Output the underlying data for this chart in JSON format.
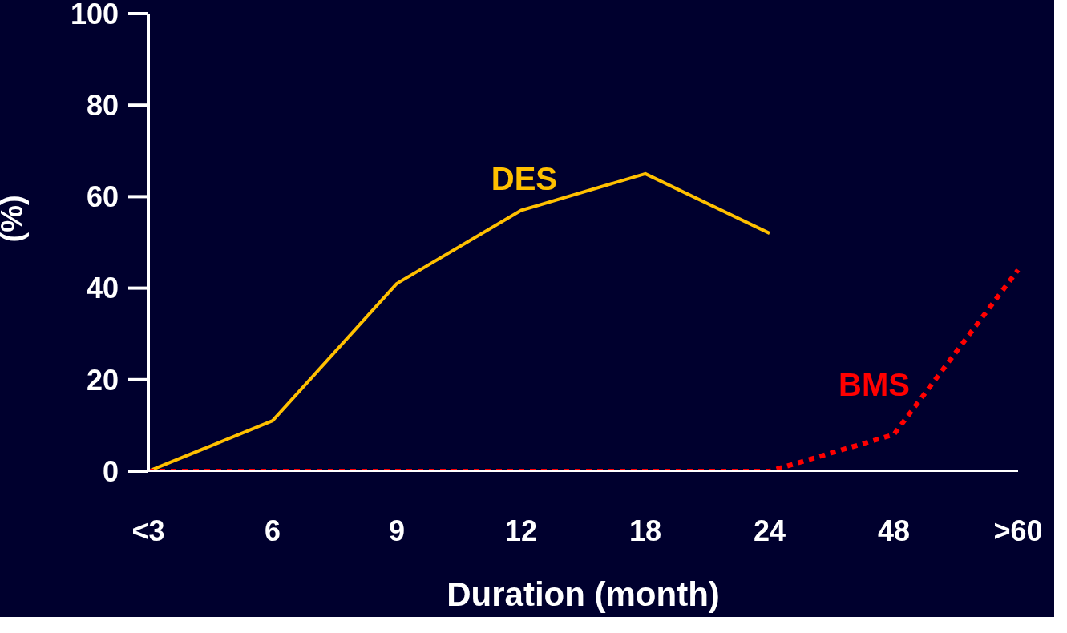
{
  "chart_data": {
    "type": "line",
    "categories": [
      "<3",
      "6",
      "9",
      "12",
      "18",
      "24",
      "48",
      ">60"
    ],
    "series": [
      {
        "name": "DES",
        "color": "#ffc000",
        "line_style": "solid",
        "values": [
          0,
          11,
          41,
          57,
          65,
          52,
          null,
          null
        ]
      },
      {
        "name": "BMS",
        "color": "#ff0000",
        "line_style": "dotted",
        "values": [
          0,
          0,
          0,
          0,
          0,
          0,
          8,
          44
        ]
      }
    ],
    "xlabel": "Duration (month)",
    "ylabel": "(%)",
    "ylim": [
      0,
      100
    ],
    "yticks": [
      0,
      20,
      40,
      60,
      80,
      100
    ],
    "legend": false,
    "grid": false,
    "marker": "none"
  }
}
